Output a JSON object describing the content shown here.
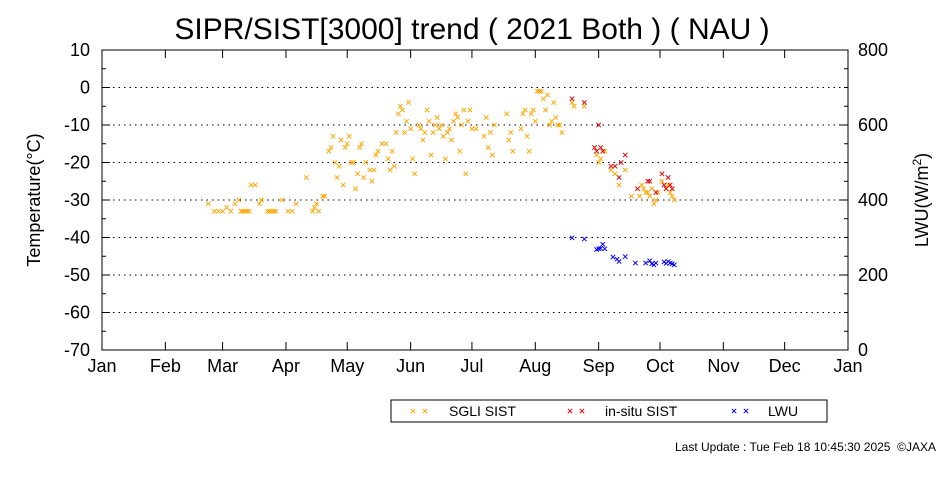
{
  "chart_data": {
    "type": "scatter",
    "title": "SIPR/SIST[3000] trend ( 2021 Both ) ( NAU )",
    "ylabel": "Temperature(°C)",
    "y2label_prefix": "LWU(W/m",
    "y2label_sup": "2",
    "y2label_suffix": ")",
    "ylim": [
      -70,
      10
    ],
    "y2lim": [
      0,
      800
    ],
    "y_ticks": [
      10,
      0,
      -10,
      -20,
      -30,
      -40,
      -50,
      -60,
      -70
    ],
    "y_tick_labels": [
      "10",
      "0",
      "-10",
      "-20",
      "-30",
      "-40",
      "-50",
      "-60",
      "-70"
    ],
    "y2_ticks": [
      800,
      600,
      400,
      200,
      0
    ],
    "y2_tick_labels": [
      "800",
      "600",
      "400",
      "200",
      "0"
    ],
    "x_tick_labels": [
      "Jan",
      "Feb",
      "Mar",
      "Apr",
      "May",
      "Jun",
      "Jul",
      "Aug",
      "Sep",
      "Oct",
      "Nov",
      "Dec",
      "Jan"
    ],
    "x_tick_days": [
      0,
      31,
      59,
      90,
      120,
      151,
      181,
      212,
      243,
      273,
      304,
      334,
      365
    ],
    "xlim": [
      0,
      365
    ],
    "grid": "horizontal dotted",
    "legend_placement": "bottom-right",
    "series": [
      {
        "name": "SGLI SIST",
        "color": "#ffa500",
        "axis": "left",
        "points": [
          [
            52,
            -31
          ],
          [
            55,
            -33
          ],
          [
            57,
            -33
          ],
          [
            59,
            -33
          ],
          [
            61,
            -32
          ],
          [
            63,
            -33
          ],
          [
            65,
            -31
          ],
          [
            67,
            -30
          ],
          [
            68,
            -33
          ],
          [
            69,
            -33
          ],
          [
            70,
            -33
          ],
          [
            71,
            -33
          ],
          [
            72,
            -33
          ],
          [
            73,
            -26
          ],
          [
            75,
            -26
          ],
          [
            77,
            -31
          ],
          [
            78,
            -30
          ],
          [
            81,
            -33
          ],
          [
            82,
            -33
          ],
          [
            83,
            -33
          ],
          [
            84,
            -33
          ],
          [
            85,
            -33
          ],
          [
            88,
            -30
          ],
          [
            91,
            -33
          ],
          [
            93,
            -33
          ],
          [
            95,
            -31
          ],
          [
            100,
            -24
          ],
          [
            103,
            -33
          ],
          [
            104,
            -32
          ],
          [
            105,
            -31
          ],
          [
            106,
            -33
          ],
          [
            108,
            -29
          ],
          [
            109,
            -29
          ],
          [
            111,
            -17
          ],
          [
            112,
            -16
          ],
          [
            113,
            -13
          ],
          [
            114,
            -20
          ],
          [
            115,
            -24
          ],
          [
            116,
            -21
          ],
          [
            117,
            -14
          ],
          [
            118,
            -26
          ],
          [
            119,
            -16
          ],
          [
            120,
            -15
          ],
          [
            121,
            -13
          ],
          [
            122,
            -20
          ],
          [
            123,
            -20
          ],
          [
            124,
            -27
          ],
          [
            125,
            -23
          ],
          [
            126,
            -16
          ],
          [
            127,
            -15
          ],
          [
            128,
            -24
          ],
          [
            129,
            -20
          ],
          [
            131,
            -22
          ],
          [
            132,
            -25
          ],
          [
            133,
            -22
          ],
          [
            134,
            -18
          ],
          [
            135,
            -17
          ],
          [
            137,
            -15
          ],
          [
            139,
            -15
          ],
          [
            140,
            -19
          ],
          [
            141,
            -22
          ],
          [
            142,
            -17
          ],
          [
            143,
            -21
          ],
          [
            144,
            -12
          ],
          [
            145,
            -7
          ],
          [
            146,
            -5
          ],
          [
            147,
            -6
          ],
          [
            148,
            -12
          ],
          [
            149,
            -9
          ],
          [
            150,
            -4
          ],
          [
            151,
            -11
          ],
          [
            152,
            -19
          ],
          [
            153,
            -23
          ],
          [
            155,
            -10
          ],
          [
            156,
            -11
          ],
          [
            157,
            -14
          ],
          [
            158,
            -12
          ],
          [
            159,
            -6
          ],
          [
            160,
            -9
          ],
          [
            161,
            -18
          ],
          [
            162,
            -12
          ],
          [
            163,
            -10
          ],
          [
            164,
            -8
          ],
          [
            165,
            -11
          ],
          [
            166,
            -10
          ],
          [
            167,
            -13
          ],
          [
            168,
            -19
          ],
          [
            169,
            -12
          ],
          [
            170,
            -11
          ],
          [
            171,
            -14
          ],
          [
            172,
            -9
          ],
          [
            173,
            -7
          ],
          [
            174,
            -8
          ],
          [
            175,
            -17
          ],
          [
            176,
            -10
          ],
          [
            177,
            -6
          ],
          [
            178,
            -23
          ],
          [
            179,
            -9
          ],
          [
            180,
            -6
          ],
          [
            181,
            -11
          ],
          [
            183,
            -11
          ],
          [
            187,
            -13
          ],
          [
            188,
            -8
          ],
          [
            189,
            -16
          ],
          [
            190,
            -12
          ],
          [
            191,
            -18
          ],
          [
            192,
            -10
          ],
          [
            198,
            -7
          ],
          [
            199,
            -14
          ],
          [
            200,
            -12
          ],
          [
            201,
            -17
          ],
          [
            205,
            -11
          ],
          [
            206,
            -7
          ],
          [
            207,
            -6
          ],
          [
            208,
            -13
          ],
          [
            209,
            -17
          ],
          [
            210,
            -7
          ],
          [
            211,
            -6
          ],
          [
            212,
            -9
          ],
          [
            213,
            -1
          ],
          [
            214,
            -1
          ],
          [
            215,
            -1
          ],
          [
            216,
            -3
          ],
          [
            217,
            -6
          ],
          [
            218,
            -2
          ],
          [
            219,
            -10
          ],
          [
            220,
            -9
          ],
          [
            221,
            -4
          ],
          [
            222,
            -8
          ],
          [
            223,
            -10
          ],
          [
            224,
            -10
          ],
          [
            225,
            -12
          ],
          [
            230,
            -4
          ],
          [
            231,
            -5
          ],
          [
            236,
            -5
          ],
          [
            242,
            -18
          ],
          [
            243,
            -20
          ],
          [
            244,
            -19
          ],
          [
            246,
            -17
          ],
          [
            249,
            -22
          ],
          [
            251,
            -23
          ],
          [
            253,
            -26
          ],
          [
            256,
            -22
          ],
          [
            259,
            -29
          ],
          [
            263,
            -29
          ],
          [
            264,
            -26
          ],
          [
            265,
            -27
          ],
          [
            266,
            -28
          ],
          [
            267,
            -28
          ],
          [
            268,
            -29
          ],
          [
            269,
            -27
          ],
          [
            270,
            -31
          ],
          [
            271,
            -30
          ],
          [
            272,
            -28
          ],
          [
            274,
            -25
          ],
          [
            276,
            -27
          ],
          [
            277,
            -26
          ],
          [
            278,
            -28
          ],
          [
            279,
            -29
          ],
          [
            280,
            -30
          ]
        ]
      },
      {
        "name": "in-situ SIST",
        "color": "#e00000",
        "axis": "left",
        "points": [
          [
            230,
            -3
          ],
          [
            236,
            -4
          ],
          [
            241,
            -16
          ],
          [
            242,
            -17
          ],
          [
            243,
            -10
          ],
          [
            244,
            -16
          ],
          [
            245,
            -17
          ],
          [
            249,
            -21
          ],
          [
            251,
            -21
          ],
          [
            253,
            -24
          ],
          [
            254,
            -20
          ],
          [
            256,
            -18
          ],
          [
            262,
            -27
          ],
          [
            267,
            -25
          ],
          [
            268,
            -25
          ],
          [
            271,
            -28
          ],
          [
            274,
            -23
          ],
          [
            275,
            -26
          ],
          [
            276,
            -27
          ],
          [
            277,
            -24
          ],
          [
            278,
            -26
          ],
          [
            279,
            -27
          ]
        ]
      },
      {
        "name": "LWU",
        "color": "#0000ff",
        "axis": "right",
        "points": [
          [
            230,
            299
          ],
          [
            236,
            296
          ],
          [
            242,
            268
          ],
          [
            243,
            270
          ],
          [
            244,
            271
          ],
          [
            245,
            282
          ],
          [
            246,
            270
          ],
          [
            250,
            248
          ],
          [
            252,
            242
          ],
          [
            253,
            236
          ],
          [
            256,
            249
          ],
          [
            261,
            232
          ],
          [
            266,
            232
          ],
          [
            268,
            238
          ],
          [
            269,
            230
          ],
          [
            270,
            227
          ],
          [
            271,
            232
          ],
          [
            275,
            235
          ],
          [
            276,
            231
          ],
          [
            277,
            236
          ],
          [
            278,
            232
          ],
          [
            279,
            230
          ],
          [
            280,
            227
          ]
        ]
      }
    ]
  },
  "footer": {
    "last_update": "Last Update : Tue Feb 18 10:45:30 2025  ©JAXA"
  }
}
